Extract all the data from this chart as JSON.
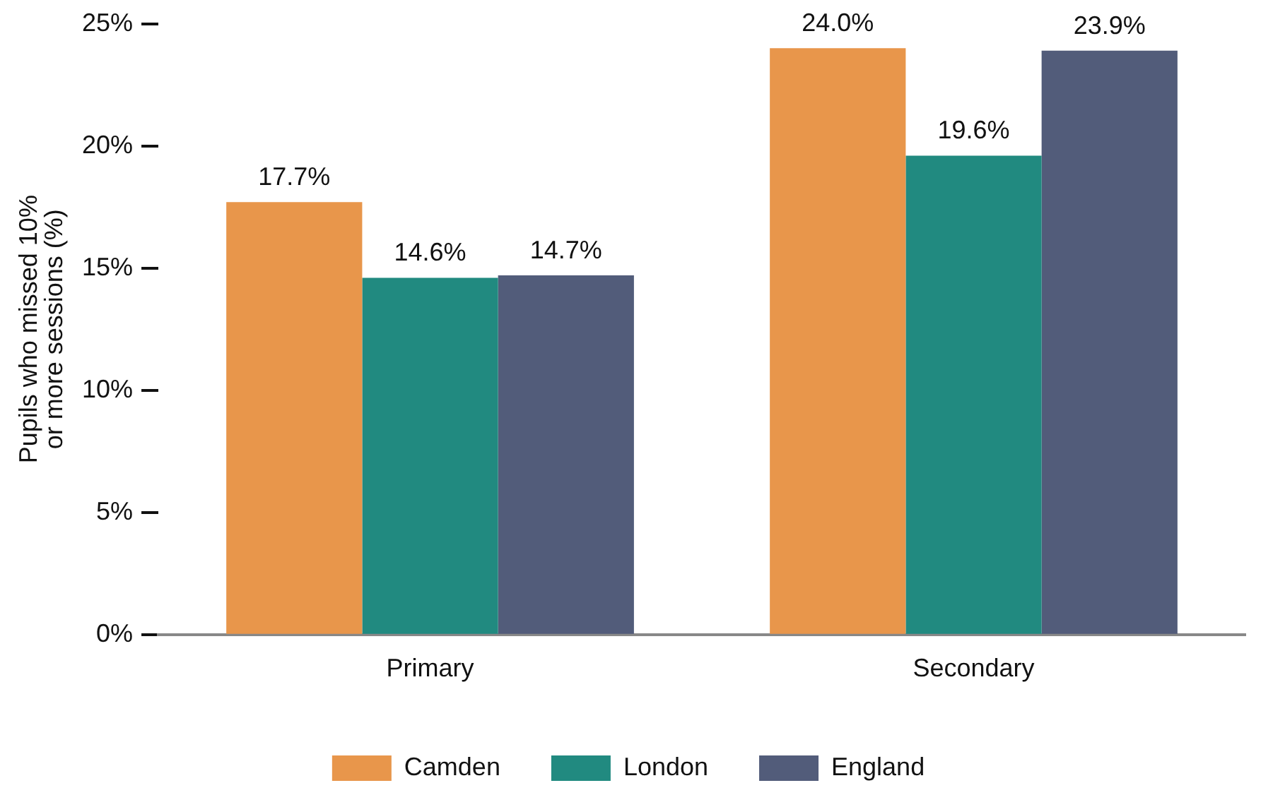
{
  "chart_data": {
    "type": "bar",
    "ylabel": "Pupils who missed 10%\nor more sessions (%)",
    "categories": [
      "Primary",
      "Secondary"
    ],
    "series": [
      {
        "name": "Camden",
        "color": "#e8964b",
        "values": [
          17.7,
          24.0
        ],
        "value_labels": [
          "17.7%",
          "24.0%"
        ]
      },
      {
        "name": "London",
        "color": "#218a80",
        "values": [
          14.6,
          19.6
        ],
        "value_labels": [
          "14.6%",
          "19.6%"
        ]
      },
      {
        "name": "England",
        "color": "#525c7a",
        "values": [
          14.7,
          23.9
        ],
        "value_labels": [
          "14.7%",
          "23.9%"
        ]
      }
    ],
    "ylim": [
      0,
      25
    ],
    "yticks": [
      {
        "value": 0,
        "label": "0%"
      },
      {
        "value": 5,
        "label": "5%"
      },
      {
        "value": 10,
        "label": "10%"
      },
      {
        "value": 15,
        "label": "15%"
      },
      {
        "value": 20,
        "label": "20%"
      },
      {
        "value": 25,
        "label": "25%"
      }
    ],
    "grid": false,
    "legend": "bottom"
  }
}
